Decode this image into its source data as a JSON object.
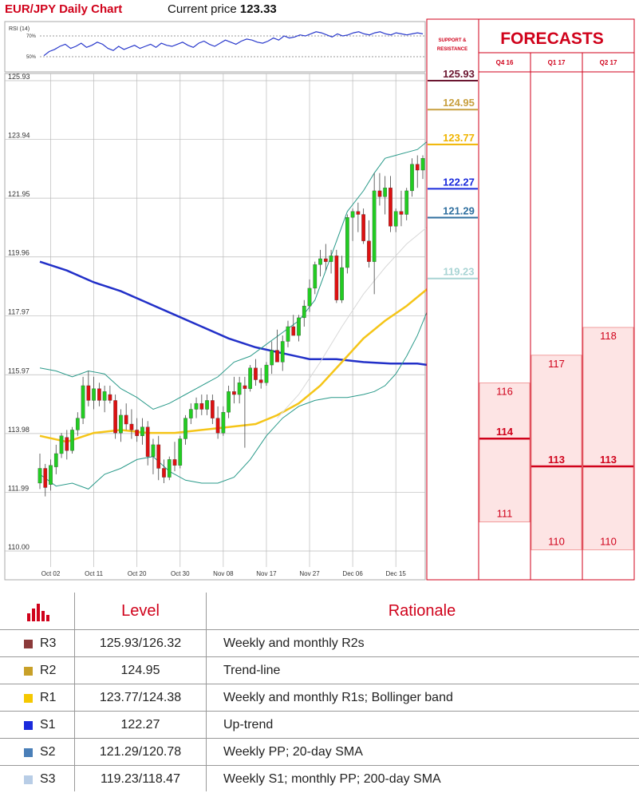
{
  "header": {
    "title": "EUR/JPY Daily Chart",
    "price_label": "Current price",
    "price_value": "123.33"
  },
  "rsi": {
    "label": "RSI (14)",
    "levels": [
      "70%",
      "50%"
    ]
  },
  "sr_panel": {
    "heading": "SUPPORT & RESISTANCE",
    "levels": [
      {
        "value": "125.93",
        "price": 125.93,
        "color": "#6b1630"
      },
      {
        "value": "124.95",
        "price": 124.95,
        "color": "#c8a040"
      },
      {
        "value": "123.77",
        "price": 123.77,
        "color": "#f0b400"
      },
      {
        "value": "122.27",
        "price": 122.27,
        "color": "#1a2adc"
      },
      {
        "value": "121.29",
        "price": 121.29,
        "color": "#2f6f9f"
      },
      {
        "value": "119.23",
        "price": 119.23,
        "color": "#a8d4d4"
      }
    ]
  },
  "forecasts": {
    "heading": "FORECASTS",
    "columns": [
      {
        "label": "Q4 16",
        "high": 116,
        "median": 114,
        "low": 111,
        "high_label": "116",
        "median_label": "114",
        "low_label": "111"
      },
      {
        "label": "Q1 17",
        "high": 117,
        "median": 113,
        "low": 110,
        "high_label": "117",
        "median_label": "113",
        "low_label": "110"
      },
      {
        "label": "Q2 17",
        "high": 118,
        "median": 113,
        "low": 110,
        "high_label": "118",
        "median_label": "113",
        "low_label": "110"
      }
    ]
  },
  "chart_data": {
    "type": "candlestick",
    "title": "EUR/JPY Daily Chart",
    "ylim": [
      110.0,
      126.3
    ],
    "y_ticks": [
      "125.93",
      "123.94",
      "121.95",
      "119.96",
      "117.97",
      "115.97",
      "113.98",
      "111.99",
      "110.00"
    ],
    "x_ticks": [
      "Oct 02",
      "Oct 11",
      "Oct 20",
      "Oct 30",
      "Nov 08",
      "Nov 17",
      "Nov 27",
      "Dec 06",
      "Dec 15"
    ],
    "x_tick_index": [
      2,
      10,
      18,
      26,
      34,
      42,
      50,
      58,
      66
    ],
    "grid": true,
    "candles": [
      [
        112.3,
        113.3,
        112.1,
        112.8
      ],
      [
        112.8,
        112.95,
        111.85,
        112.15
      ],
      [
        112.25,
        113.1,
        112.05,
        112.9
      ],
      [
        112.85,
        113.6,
        112.6,
        113.3
      ],
      [
        113.3,
        114.0,
        113.15,
        113.9
      ],
      [
        113.85,
        114.1,
        113.1,
        113.4
      ],
      [
        113.4,
        114.2,
        113.3,
        114.1
      ],
      [
        114.1,
        114.7,
        113.9,
        114.5
      ],
      [
        114.5,
        115.9,
        114.3,
        115.6
      ],
      [
        115.6,
        116.1,
        114.9,
        115.1
      ],
      [
        115.1,
        115.9,
        114.8,
        115.5
      ],
      [
        115.5,
        115.7,
        114.9,
        115.1
      ],
      [
        115.1,
        115.6,
        114.7,
        115.4
      ],
      [
        115.3,
        115.6,
        115.0,
        115.1
      ],
      [
        115.1,
        115.3,
        113.8,
        114.0
      ],
      [
        114.0,
        114.8,
        113.7,
        114.6
      ],
      [
        114.6,
        115.0,
        114.1,
        114.3
      ],
      [
        114.3,
        114.8,
        113.8,
        114.1
      ],
      [
        114.1,
        114.5,
        113.7,
        113.9
      ],
      [
        113.9,
        114.5,
        113.6,
        114.2
      ],
      [
        114.2,
        114.4,
        112.9,
        113.2
      ],
      [
        113.2,
        113.8,
        112.6,
        113.6
      ],
      [
        113.6,
        113.9,
        112.4,
        112.8
      ],
      [
        112.8,
        113.1,
        112.3,
        112.5
      ],
      [
        112.5,
        113.2,
        112.4,
        113.1
      ],
      [
        113.1,
        113.7,
        112.7,
        112.9
      ],
      [
        112.9,
        113.9,
        112.8,
        113.8
      ],
      [
        113.8,
        114.6,
        113.6,
        114.5
      ],
      [
        114.5,
        115.0,
        114.3,
        114.8
      ],
      [
        114.8,
        115.2,
        114.5,
        115.0
      ],
      [
        115.0,
        115.3,
        114.6,
        114.8
      ],
      [
        114.8,
        115.3,
        114.6,
        115.1
      ],
      [
        115.1,
        115.3,
        114.3,
        114.5
      ],
      [
        114.5,
        114.9,
        113.8,
        114.0
      ],
      [
        114.0,
        114.9,
        113.9,
        114.7
      ],
      [
        114.7,
        115.6,
        114.5,
        115.4
      ],
      [
        115.4,
        115.9,
        115.0,
        115.3
      ],
      [
        115.3,
        115.9,
        115.0,
        115.7
      ],
      [
        115.6,
        115.9,
        113.5,
        115.5
      ],
      [
        115.5,
        116.3,
        115.4,
        116.2
      ],
      [
        116.2,
        116.5,
        115.6,
        115.8
      ],
      [
        115.8,
        116.2,
        115.5,
        115.7
      ],
      [
        115.7,
        116.4,
        115.6,
        116.3
      ],
      [
        116.3,
        117.1,
        116.0,
        116.8
      ],
      [
        116.8,
        117.5,
        116.5,
        116.4
      ],
      [
        116.4,
        117.3,
        116.1,
        117.1
      ],
      [
        117.1,
        117.8,
        116.9,
        117.6
      ],
      [
        117.6,
        118.0,
        117.3,
        117.3
      ],
      [
        117.3,
        118.0,
        117.1,
        117.9
      ],
      [
        117.9,
        118.5,
        117.6,
        118.3
      ],
      [
        118.3,
        119.2,
        118.1,
        118.9
      ],
      [
        118.9,
        119.8,
        118.7,
        119.7
      ],
      [
        119.7,
        120.2,
        119.3,
        119.9
      ],
      [
        119.9,
        120.4,
        119.5,
        119.8
      ],
      [
        119.8,
        120.2,
        119.4,
        120.0
      ],
      [
        120.0,
        120.2,
        118.4,
        118.5
      ],
      [
        118.5,
        120.0,
        118.4,
        119.6
      ],
      [
        119.6,
        121.4,
        119.4,
        121.3
      ],
      [
        121.3,
        121.6,
        120.5,
        121.5
      ],
      [
        121.5,
        121.8,
        120.8,
        121.4
      ],
      [
        121.4,
        121.6,
        120.4,
        120.5
      ],
      [
        120.5,
        121.2,
        119.6,
        119.8
      ],
      [
        119.8,
        122.8,
        118.7,
        122.2
      ],
      [
        122.2,
        122.8,
        121.7,
        122.0
      ],
      [
        122.0,
        122.7,
        121.4,
        122.3
      ],
      [
        122.3,
        122.7,
        120.8,
        121.0
      ],
      [
        121.0,
        121.6,
        120.8,
        121.5
      ],
      [
        121.5,
        122.2,
        121.0,
        121.4
      ],
      [
        121.4,
        122.3,
        121.2,
        122.2
      ],
      [
        122.2,
        123.3,
        122.0,
        123.1
      ],
      [
        123.1,
        123.4,
        122.3,
        122.9
      ],
      [
        122.9,
        123.4,
        122.6,
        123.3
      ]
    ],
    "series": [
      {
        "name": "",
        "color": "#2230c8",
        "points": [
          [
            0,
            119.8
          ],
          [
            5,
            119.5
          ],
          [
            10,
            119.1
          ],
          [
            15,
            118.8
          ],
          [
            20,
            118.4
          ],
          [
            25,
            118.0
          ],
          [
            30,
            117.6
          ],
          [
            35,
            117.2
          ],
          [
            40,
            116.9
          ],
          [
            45,
            116.7
          ],
          [
            50,
            116.5
          ],
          [
            55,
            116.5
          ],
          [
            60,
            116.4
          ],
          [
            65,
            116.35
          ],
          [
            70,
            116.35
          ],
          [
            72,
            116.3
          ]
        ]
      },
      {
        "name": "",
        "color": "#f5c518",
        "points": [
          [
            0,
            113.9
          ],
          [
            5,
            113.7
          ],
          [
            10,
            114.0
          ],
          [
            15,
            114.1
          ],
          [
            20,
            114.0
          ],
          [
            25,
            114.0
          ],
          [
            30,
            114.1
          ],
          [
            35,
            114.2
          ],
          [
            40,
            114.3
          ],
          [
            44,
            114.6
          ],
          [
            48,
            115.0
          ],
          [
            52,
            115.6
          ],
          [
            56,
            116.4
          ],
          [
            60,
            117.2
          ],
          [
            64,
            117.8
          ],
          [
            68,
            118.3
          ],
          [
            72,
            118.9
          ]
        ]
      },
      {
        "name": "",
        "color": "#d8d8d8",
        "points": [
          [
            44,
            114.5
          ],
          [
            48,
            115.3
          ],
          [
            52,
            116.4
          ],
          [
            56,
            117.6
          ],
          [
            60,
            118.7
          ],
          [
            64,
            119.6
          ],
          [
            68,
            120.4
          ],
          [
            72,
            121.0
          ]
        ]
      },
      {
        "name": "",
        "color": "#2a9a8a",
        "points": [
          [
            0,
            116.2
          ],
          [
            3,
            116.1
          ],
          [
            6,
            115.9
          ],
          [
            9,
            116.1
          ],
          [
            12,
            116.0
          ],
          [
            15,
            115.5
          ],
          [
            18,
            115.2
          ],
          [
            21,
            114.8
          ],
          [
            24,
            115.0
          ],
          [
            27,
            115.3
          ],
          [
            30,
            115.6
          ],
          [
            33,
            115.9
          ],
          [
            36,
            116.4
          ],
          [
            39,
            116.6
          ],
          [
            42,
            117.0
          ],
          [
            45,
            117.4
          ],
          [
            48,
            117.8
          ],
          [
            51,
            118.5
          ],
          [
            54,
            120.0
          ],
          [
            57,
            121.5
          ],
          [
            60,
            122.2
          ],
          [
            62,
            122.8
          ],
          [
            64,
            123.3
          ],
          [
            66,
            123.4
          ],
          [
            68,
            123.5
          ],
          [
            70,
            123.6
          ],
          [
            72,
            123.9
          ]
        ]
      },
      {
        "name": "",
        "color": "#2a9a8a",
        "points": [
          [
            0,
            112.6
          ],
          [
            3,
            112.2
          ],
          [
            6,
            112.3
          ],
          [
            9,
            112.1
          ],
          [
            12,
            112.6
          ],
          [
            15,
            112.8
          ],
          [
            18,
            113.1
          ],
          [
            21,
            113.2
          ],
          [
            24,
            112.7
          ],
          [
            27,
            112.4
          ],
          [
            30,
            112.3
          ],
          [
            33,
            112.3
          ],
          [
            36,
            112.5
          ],
          [
            39,
            113.1
          ],
          [
            42,
            113.9
          ],
          [
            45,
            114.5
          ],
          [
            48,
            114.9
          ],
          [
            51,
            115.1
          ],
          [
            54,
            115.2
          ],
          [
            57,
            115.2
          ],
          [
            60,
            115.3
          ],
          [
            62,
            115.4
          ],
          [
            64,
            115.6
          ],
          [
            66,
            116.0
          ],
          [
            68,
            116.6
          ],
          [
            70,
            117.3
          ],
          [
            72,
            118.2
          ]
        ]
      }
    ]
  },
  "table": {
    "headers": {
      "level": "Level",
      "rationale": "Rationale"
    },
    "icon": "bar-chart-icon",
    "rows": [
      {
        "name": "R3",
        "level": "125.93/126.32",
        "rationale": "Weekly and monthly R2s",
        "color": "#8b3a3a"
      },
      {
        "name": "R2",
        "level": "124.95",
        "rationale": "Trend-line",
        "color": "#c8a028"
      },
      {
        "name": "R1",
        "level": "123.77/124.38",
        "rationale": "Weekly and monthly R1s; Bollinger band",
        "color": "#f5c800"
      },
      {
        "name": "S1",
        "level": "122.27",
        "rationale": "Up-trend",
        "color": "#1a2adc"
      },
      {
        "name": "S2",
        "level": "121.29/120.78",
        "rationale": "Weekly PP; 20-day SMA",
        "color": "#4a7fb8"
      },
      {
        "name": "S3",
        "level": "119.23/118.47",
        "rationale": "Weekly S1; monthly PP; 200-day SMA",
        "color": "#b8cde6"
      }
    ]
  }
}
